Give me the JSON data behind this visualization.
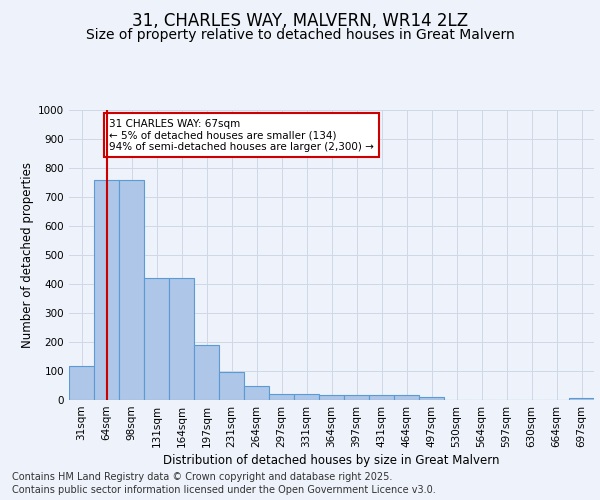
{
  "title": "31, CHARLES WAY, MALVERN, WR14 2LZ",
  "subtitle": "Size of property relative to detached houses in Great Malvern",
  "xlabel": "Distribution of detached houses by size in Great Malvern",
  "ylabel": "Number of detached properties",
  "categories": [
    "31sqm",
    "64sqm",
    "98sqm",
    "131sqm",
    "164sqm",
    "197sqm",
    "231sqm",
    "264sqm",
    "297sqm",
    "331sqm",
    "364sqm",
    "397sqm",
    "431sqm",
    "464sqm",
    "497sqm",
    "530sqm",
    "564sqm",
    "597sqm",
    "630sqm",
    "664sqm",
    "697sqm"
  ],
  "values": [
    118,
    760,
    760,
    420,
    420,
    190,
    95,
    47,
    22,
    22,
    17,
    17,
    17,
    17,
    9,
    0,
    0,
    0,
    0,
    0,
    8
  ],
  "bar_color": "#aec6e8",
  "bar_edge_color": "#5b9bd5",
  "grid_color": "#d0d8e8",
  "background_color": "#eef2fa",
  "vline_x": 1.0,
  "vline_color": "#cc0000",
  "annotation_text": "31 CHARLES WAY: 67sqm\n← 5% of detached houses are smaller (134)\n94% of semi-detached houses are larger (2,300) →",
  "annotation_box_color": "#cc0000",
  "ylim": [
    0,
    1000
  ],
  "yticks": [
    0,
    100,
    200,
    300,
    400,
    500,
    600,
    700,
    800,
    900,
    1000
  ],
  "footer_line1": "Contains HM Land Registry data © Crown copyright and database right 2025.",
  "footer_line2": "Contains public sector information licensed under the Open Government Licence v3.0.",
  "title_fontsize": 12,
  "subtitle_fontsize": 10,
  "axis_label_fontsize": 8.5,
  "tick_fontsize": 7.5,
  "footer_fontsize": 7
}
